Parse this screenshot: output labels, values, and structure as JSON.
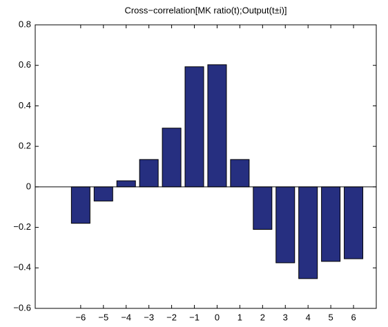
{
  "chart_data": {
    "type": "bar",
    "title": "Cross−correlation[MK ratio(t);Output(t±i)]",
    "x": [
      -6,
      -5,
      -4,
      -3,
      -2,
      -1,
      0,
      1,
      2,
      3,
      4,
      5,
      6
    ],
    "values": [
      -0.18,
      -0.07,
      0.03,
      0.135,
      0.29,
      0.593,
      0.603,
      0.135,
      -0.21,
      -0.375,
      -0.453,
      -0.368,
      -0.355
    ],
    "color": "#262f80",
    "xlim": [
      -8,
      7
    ],
    "xticks": [
      {
        "value": -6,
        "label": "−6"
      },
      {
        "value": -5,
        "label": "−5"
      },
      {
        "value": -4,
        "label": "−4"
      },
      {
        "value": -3,
        "label": "−3"
      },
      {
        "value": -2,
        "label": "−2"
      },
      {
        "value": -1,
        "label": "−1"
      },
      0,
      1,
      2,
      3,
      4,
      5,
      6
    ],
    "ylim": [
      -0.6,
      0.8
    ],
    "yticks": [
      {
        "value": -0.6,
        "label": "−0.6"
      },
      {
        "value": -0.4,
        "label": "−0.4"
      },
      {
        "value": -0.2,
        "label": "−0.2"
      },
      0,
      0.2,
      0.4,
      0.6,
      0.8
    ],
    "grid": false
  }
}
